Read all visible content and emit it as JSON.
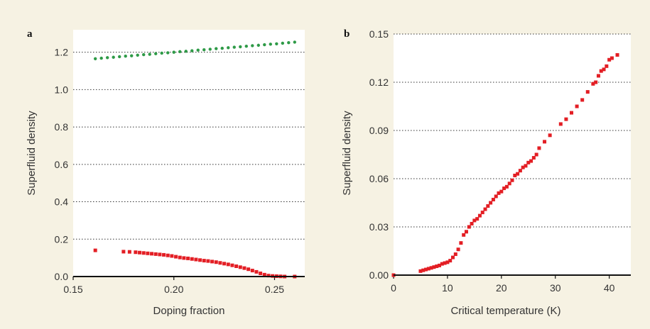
{
  "colors": {
    "background": "#f6f2e3",
    "plot_area": "#ffffff",
    "series_red": "#e31e24",
    "series_green": "#2e9a47"
  },
  "chart_data": [
    {
      "panel_label": "a",
      "type": "scatter",
      "title": "",
      "xlabel": "Doping fraction",
      "ylabel": "Superfluid density",
      "xlim": [
        0.15,
        0.265
      ],
      "ylim": [
        0,
        1.32
      ],
      "xticks": [
        0.15,
        0.2,
        0.25
      ],
      "xtick_labels": [
        "0.15",
        "0.20",
        "0.25"
      ],
      "yticks": [
        0.0,
        0.2,
        0.4,
        0.6,
        0.8,
        1.0,
        1.2
      ],
      "ytick_labels": [
        "0.0",
        "0.2",
        "0.4",
        "0.6",
        "0.8",
        "1.0",
        "1.2"
      ],
      "grid": "horizontal dotted",
      "series": [
        {
          "color": "#2e9a47",
          "marker": "circle",
          "x": [
            0.161,
            0.164,
            0.167,
            0.17,
            0.173,
            0.176,
            0.179,
            0.182,
            0.185,
            0.188,
            0.191,
            0.194,
            0.197,
            0.2,
            0.203,
            0.206,
            0.209,
            0.212,
            0.215,
            0.218,
            0.221,
            0.224,
            0.227,
            0.23,
            0.233,
            0.236,
            0.239,
            0.242,
            0.245,
            0.248,
            0.251,
            0.254,
            0.257,
            0.26
          ],
          "y": [
            1.165,
            1.168,
            1.171,
            1.173,
            1.176,
            1.179,
            1.181,
            1.184,
            1.187,
            1.189,
            1.192,
            1.195,
            1.197,
            1.2,
            1.203,
            1.205,
            1.208,
            1.211,
            1.213,
            1.216,
            1.219,
            1.221,
            1.224,
            1.227,
            1.229,
            1.232,
            1.235,
            1.237,
            1.24,
            1.243,
            1.245,
            1.248,
            1.251,
            1.254
          ]
        },
        {
          "color": "#e31e24",
          "marker": "square",
          "x": [
            0.161,
            0.175,
            0.178,
            0.181,
            0.183,
            0.185,
            0.187,
            0.189,
            0.191,
            0.193,
            0.195,
            0.197,
            0.199,
            0.201,
            0.203,
            0.205,
            0.207,
            0.209,
            0.211,
            0.213,
            0.215,
            0.217,
            0.219,
            0.221,
            0.223,
            0.225,
            0.227,
            0.229,
            0.231,
            0.233,
            0.235,
            0.237,
            0.239,
            0.241,
            0.243,
            0.245,
            0.247,
            0.249,
            0.251,
            0.253,
            0.255,
            0.26
          ],
          "y": [
            0.14,
            0.133,
            0.132,
            0.13,
            0.128,
            0.126,
            0.124,
            0.122,
            0.12,
            0.118,
            0.116,
            0.113,
            0.11,
            0.106,
            0.102,
            0.099,
            0.097,
            0.094,
            0.091,
            0.088,
            0.085,
            0.083,
            0.08,
            0.077,
            0.073,
            0.069,
            0.065,
            0.06,
            0.055,
            0.05,
            0.045,
            0.039,
            0.032,
            0.025,
            0.017,
            0.01,
            0.005,
            0.003,
            0.002,
            0.001,
            0.0,
            0.0
          ]
        }
      ]
    },
    {
      "panel_label": "b",
      "type": "scatter",
      "title": "",
      "xlabel": "Critical temperature (K)",
      "ylabel": "Superfluid density",
      "xlim": [
        0,
        44
      ],
      "ylim": [
        0,
        0.15
      ],
      "xticks": [
        0,
        10,
        20,
        30,
        40
      ],
      "xtick_labels": [
        "0",
        "10",
        "20",
        "30",
        "40"
      ],
      "yticks": [
        0.0,
        0.03,
        0.06,
        0.09,
        0.12,
        0.15
      ],
      "ytick_labels": [
        "0.00",
        "0.03",
        "0.06",
        "0.09",
        "0.12",
        "0.15"
      ],
      "grid": "horizontal dotted",
      "series": [
        {
          "color": "#e31e24",
          "marker": "square",
          "x": [
            0,
            5,
            5.5,
            6,
            6.5,
            7,
            7.5,
            8,
            8.5,
            9,
            9.5,
            10,
            10.5,
            11,
            11.5,
            12,
            12.5,
            13,
            13.5,
            14,
            14.5,
            15,
            15.5,
            16,
            16.5,
            17,
            17.5,
            18,
            18.5,
            19,
            19.5,
            20,
            20.5,
            21,
            21.5,
            22,
            22.5,
            23,
            23.5,
            24,
            24.5,
            25,
            25.5,
            26,
            26.5,
            27,
            28,
            29,
            31,
            32,
            33,
            34,
            35,
            36,
            37,
            37.5,
            38,
            38.5,
            39,
            39.5,
            40,
            40.5,
            41.5
          ],
          "y": [
            0.0,
            0.0025,
            0.003,
            0.0035,
            0.004,
            0.0045,
            0.005,
            0.0055,
            0.006,
            0.007,
            0.0075,
            0.008,
            0.009,
            0.011,
            0.013,
            0.016,
            0.02,
            0.025,
            0.027,
            0.03,
            0.032,
            0.034,
            0.035,
            0.037,
            0.039,
            0.041,
            0.043,
            0.045,
            0.047,
            0.049,
            0.051,
            0.052,
            0.054,
            0.055,
            0.057,
            0.059,
            0.062,
            0.063,
            0.065,
            0.067,
            0.068,
            0.07,
            0.071,
            0.073,
            0.075,
            0.079,
            0.083,
            0.087,
            0.094,
            0.097,
            0.101,
            0.105,
            0.109,
            0.114,
            0.119,
            0.12,
            0.124,
            0.127,
            0.128,
            0.13,
            0.134,
            0.135,
            0.137
          ]
        }
      ]
    }
  ]
}
